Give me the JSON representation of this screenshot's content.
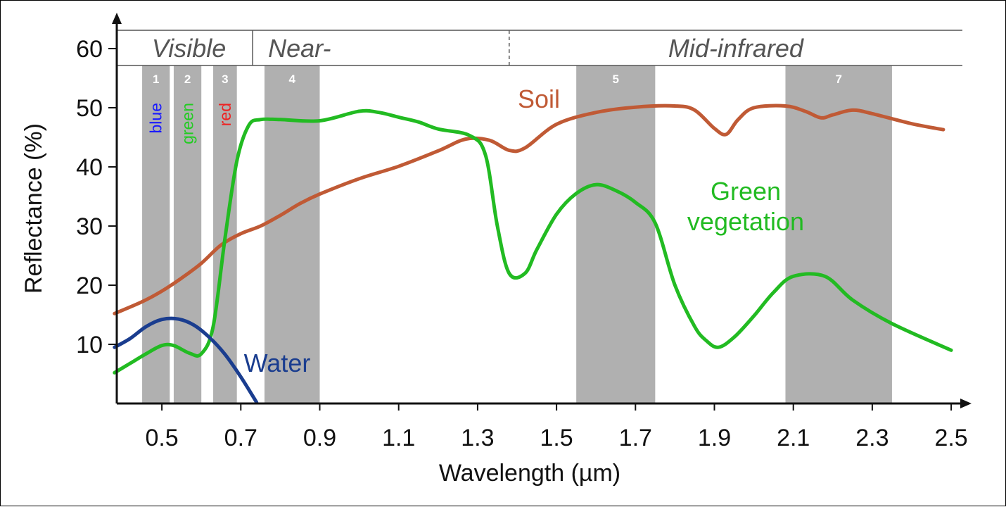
{
  "chart_data": {
    "type": "line",
    "xlabel": "Wavelength (µm)",
    "ylabel": "Reflectance (%)",
    "xlim": [
      0.38,
      2.55
    ],
    "ylim": [
      0,
      63
    ],
    "x_ticks": [
      0.5,
      0.7,
      0.9,
      1.1,
      1.3,
      1.5,
      1.7,
      1.9,
      2.1,
      2.3,
      2.5
    ],
    "x_tick_labels": [
      "0.5",
      "0.7",
      "0.9",
      "1.1",
      "1.3",
      "1.5",
      "1.7",
      "1.9",
      "2.1",
      "2.3",
      "2.5"
    ],
    "y_ticks": [
      10,
      20,
      30,
      40,
      50,
      60
    ],
    "y_tick_labels": [
      "10",
      "20",
      "30",
      "40",
      "50",
      "60"
    ],
    "grid": false,
    "regions": [
      {
        "label": "Visible",
        "x_start": 0.38,
        "x_end": 0.73,
        "divider": "solid"
      },
      {
        "label": "Near-",
        "x_start": 0.73,
        "x_end": 1.38,
        "divider": "dashed"
      },
      {
        "label": "Mid-infrared",
        "x_start": 1.38,
        "x_end": 2.55
      }
    ],
    "bands": [
      {
        "number": "1",
        "x_start": 0.45,
        "x_end": 0.52,
        "color_label": "blue",
        "label_color": "#1a1aff"
      },
      {
        "number": "2",
        "x_start": 0.53,
        "x_end": 0.6,
        "color_label": "green",
        "label_color": "#22cc22"
      },
      {
        "number": "3",
        "x_start": 0.63,
        "x_end": 0.69,
        "color_label": "red",
        "label_color": "#ee2222"
      },
      {
        "number": "4",
        "x_start": 0.76,
        "x_end": 0.9,
        "color_label": "",
        "label_color": ""
      },
      {
        "number": "5",
        "x_start": 1.55,
        "x_end": 1.75,
        "color_label": "",
        "label_color": ""
      },
      {
        "number": "7",
        "x_start": 2.08,
        "x_end": 2.35,
        "color_label": "",
        "label_color": ""
      }
    ],
    "series": [
      {
        "name": "Soil",
        "color": "#c05a35",
        "x": [
          0.38,
          0.45,
          0.5,
          0.55,
          0.6,
          0.65,
          0.7,
          0.75,
          0.8,
          0.85,
          0.9,
          1.0,
          1.1,
          1.2,
          1.27,
          1.33,
          1.38,
          1.42,
          1.5,
          1.6,
          1.7,
          1.8,
          1.85,
          1.9,
          1.93,
          1.96,
          2.0,
          2.08,
          2.13,
          2.17,
          2.2,
          2.25,
          2.3,
          2.4,
          2.48
        ],
        "y": [
          15.2,
          17.2,
          19.0,
          21.2,
          23.7,
          26.8,
          28.7,
          30.0,
          31.8,
          33.8,
          35.4,
          38.0,
          40.1,
          42.7,
          44.7,
          44.5,
          42.8,
          43.2,
          47.2,
          49.2,
          50.1,
          50.3,
          49.6,
          46.5,
          45.5,
          48.0,
          50.0,
          50.3,
          49.4,
          48.3,
          48.8,
          49.6,
          49.0,
          47.3,
          46.3
        ]
      },
      {
        "name": "Green vegetation",
        "color": "#22bb22",
        "x": [
          0.38,
          0.42,
          0.46,
          0.5,
          0.53,
          0.57,
          0.6,
          0.63,
          0.66,
          0.69,
          0.72,
          0.75,
          0.8,
          0.9,
          1.0,
          1.05,
          1.1,
          1.15,
          1.2,
          1.28,
          1.32,
          1.35,
          1.38,
          1.42,
          1.45,
          1.5,
          1.55,
          1.6,
          1.65,
          1.7,
          1.75,
          1.8,
          1.85,
          1.88,
          1.91,
          1.95,
          2.0,
          2.05,
          2.1,
          2.18,
          2.25,
          2.35,
          2.5
        ],
        "y": [
          5.2,
          6.8,
          8.4,
          9.8,
          9.8,
          8.5,
          8.4,
          13.0,
          28.0,
          41.0,
          47.0,
          48.0,
          48.0,
          47.8,
          49.4,
          49.2,
          48.4,
          47.6,
          46.4,
          45.3,
          42.0,
          30.0,
          22.0,
          22.0,
          26.0,
          32.0,
          35.5,
          37.0,
          36.0,
          34.0,
          30.5,
          20.0,
          13.0,
          10.6,
          9.5,
          11.2,
          14.8,
          18.8,
          21.5,
          21.5,
          17.5,
          13.5,
          9.0
        ]
      },
      {
        "name": "Water",
        "color": "#1a3d8f",
        "x": [
          0.38,
          0.42,
          0.46,
          0.5,
          0.54,
          0.58,
          0.62,
          0.66,
          0.7,
          0.74
        ],
        "y": [
          9.5,
          11.0,
          13.0,
          14.2,
          14.3,
          13.3,
          11.2,
          8.3,
          4.5,
          0.2
        ]
      }
    ]
  }
}
